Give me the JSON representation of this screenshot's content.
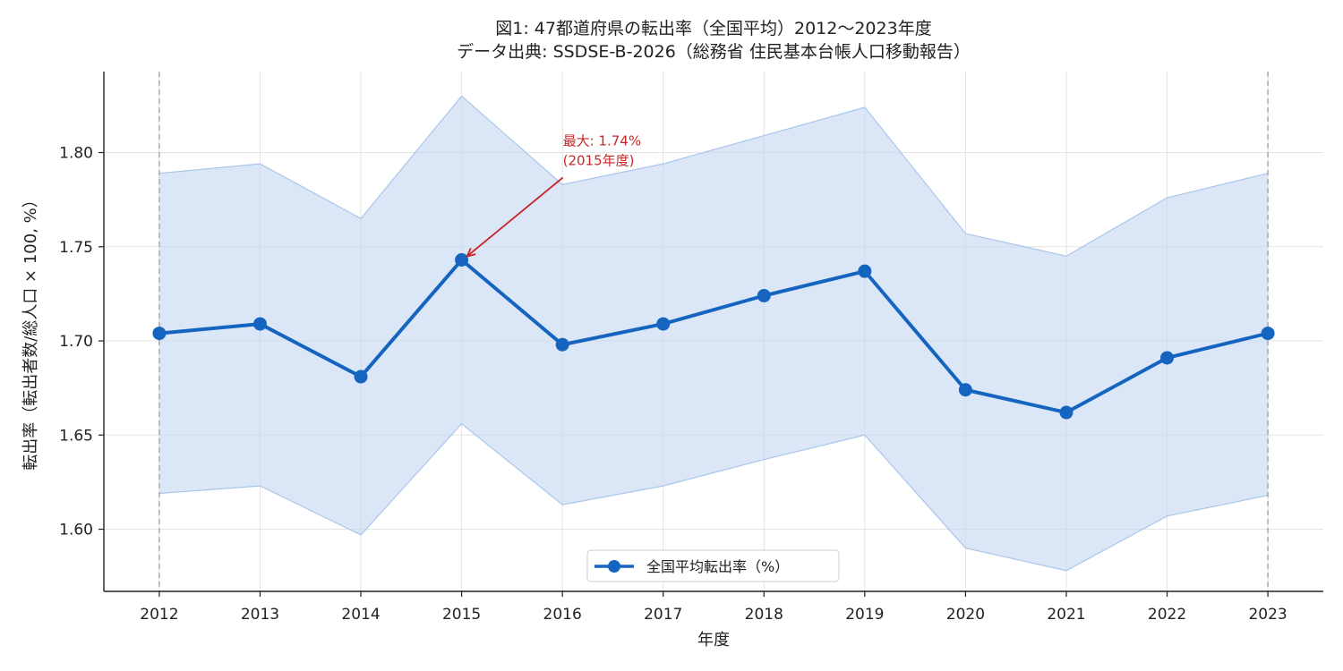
{
  "chart_data": {
    "type": "line",
    "title_line1": "図1: 47都道府県の転出率（全国平均）2012〜2023年度",
    "title_line2": "データ出典: SSDSE-B-2026（総務省 住民基本台帳人口移動報告）",
    "xlabel": "年度",
    "ylabel": "転出率（転出者数/総人口 × 100, %）",
    "x": [
      2012,
      2013,
      2014,
      2015,
      2016,
      2017,
      2018,
      2019,
      2020,
      2021,
      2022,
      2023
    ],
    "series": [
      {
        "name": "全国平均転出率（%）",
        "values": [
          1.704,
          1.709,
          1.681,
          1.743,
          1.698,
          1.709,
          1.724,
          1.737,
          1.674,
          1.662,
          1.691,
          1.704
        ],
        "band_upper": [
          1.789,
          1.794,
          1.765,
          1.83,
          1.783,
          1.794,
          1.809,
          1.824,
          1.757,
          1.745,
          1.776,
          1.789
        ],
        "band_lower": [
          1.619,
          1.623,
          1.597,
          1.656,
          1.613,
          1.623,
          1.637,
          1.65,
          1.59,
          1.578,
          1.607,
          1.618
        ]
      }
    ],
    "xlim": [
      2011.45,
      2023.55
    ],
    "ylim": [
      1.567,
      1.843
    ],
    "yticks": [
      1.6,
      1.65,
      1.7,
      1.75,
      1.8
    ],
    "ytick_labels": [
      "1.60",
      "1.65",
      "1.70",
      "1.75",
      "1.80"
    ],
    "xtick_labels": [
      "2012",
      "2013",
      "2014",
      "2015",
      "2016",
      "2017",
      "2018",
      "2019",
      "2020",
      "2021",
      "2022",
      "2023"
    ],
    "annotation": {
      "x": 2015,
      "y": 1.743,
      "line1": "最大: 1.74%",
      "line2": "(2015年度)"
    },
    "vlines": [
      2012,
      2023
    ],
    "grid": true,
    "legend_position": "bottom-center",
    "colors": {
      "line": "#1565c0",
      "band": "#c8daf3",
      "band_edge": "#a9c6ea",
      "annotation": "#c62828",
      "vline": "#9e9e9e",
      "grid": "#e3e3e3"
    }
  }
}
